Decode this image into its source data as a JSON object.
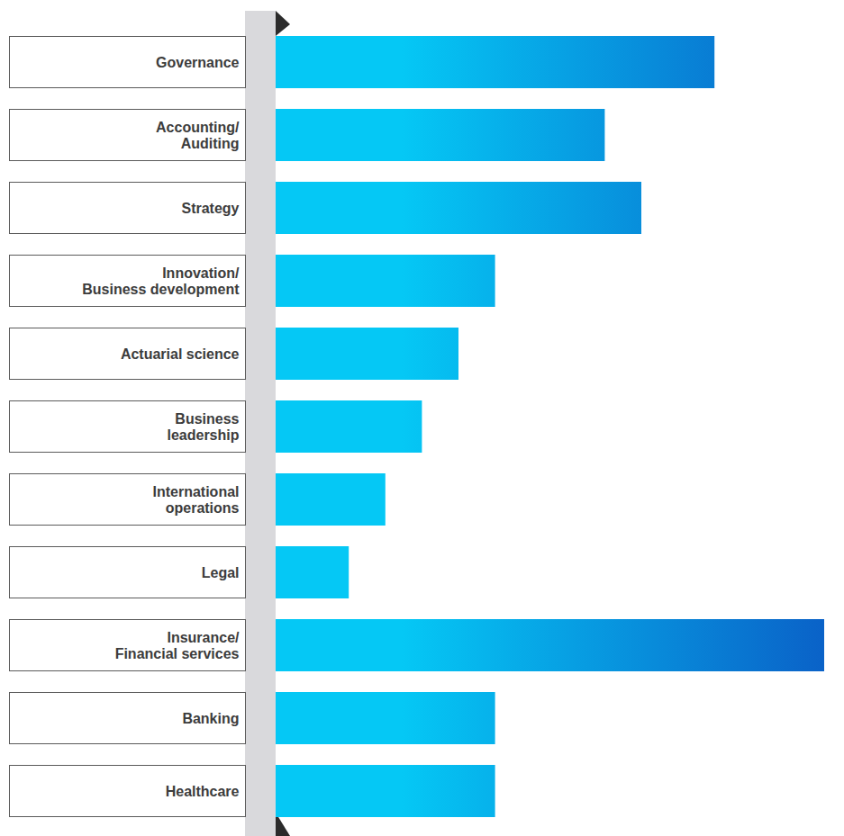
{
  "chart_data": {
    "type": "bar",
    "orientation": "horizontal",
    "categories": [
      "Governance",
      "Accounting/ Auditing",
      "Strategy",
      "Innovation/ Business development",
      "Actuarial science",
      "Business leadership",
      "International operations",
      "Legal",
      "Insurance/ Financial services",
      "Banking",
      "Healthcare"
    ],
    "values": [
      12,
      9,
      10,
      6,
      5,
      4,
      3,
      2,
      15,
      6,
      6
    ],
    "xlim": [
      0,
      15
    ],
    "xticks": [],
    "tick_labels": false,
    "color": "#05c8f5"
  }
}
